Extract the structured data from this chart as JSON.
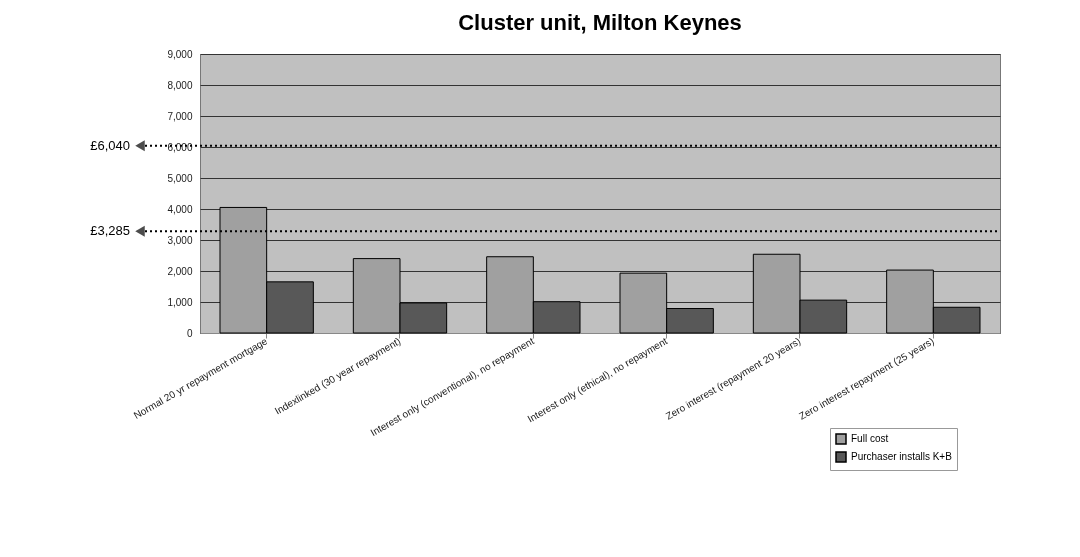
{
  "chart_data": {
    "type": "bar",
    "title": "Cluster unit, Milton Keynes",
    "categories": [
      "Normal 20 yr repayment mortgage",
      "Indexlinked (30 year repayment)",
      "Interest only (conventional), no repayment",
      "Interest only (ethical), no repayment",
      "Zero interest (repayment 20 years)",
      "Zero interest repayment (25 years)"
    ],
    "series": [
      {
        "name": "Full cost",
        "color": "#a0a0a0",
        "values": [
          4050,
          2400,
          2460,
          1930,
          2540,
          2030
        ]
      },
      {
        "name": "Purchaser installs K+B",
        "color": "#585858",
        "values": [
          1650,
          970,
          1010,
          790,
          1060,
          830
        ]
      }
    ],
    "ylim": [
      0,
      9000
    ],
    "yticks": [
      {
        "value": 0,
        "label": "0"
      },
      {
        "value": 1000,
        "label": "1,000"
      },
      {
        "value": 2000,
        "label": "2,000"
      },
      {
        "value": 3000,
        "label": "3,000"
      },
      {
        "value": 4000,
        "label": "4,000"
      },
      {
        "value": 5000,
        "label": "5,000"
      },
      {
        "value": 6000,
        "label": "6,000"
      },
      {
        "value": 7000,
        "label": "7,000"
      },
      {
        "value": 8000,
        "label": "8,000"
      },
      {
        "value": 9000,
        "label": "9,000"
      }
    ],
    "grid": "y",
    "legend": "bottom right",
    "ref_lines": [
      {
        "axis": "y",
        "value": 6040,
        "label": "£6,040",
        "line_style": "dotted"
      },
      {
        "axis": "y",
        "value": 3285,
        "label": "£3,285",
        "line_style": "dotted"
      }
    ]
  }
}
